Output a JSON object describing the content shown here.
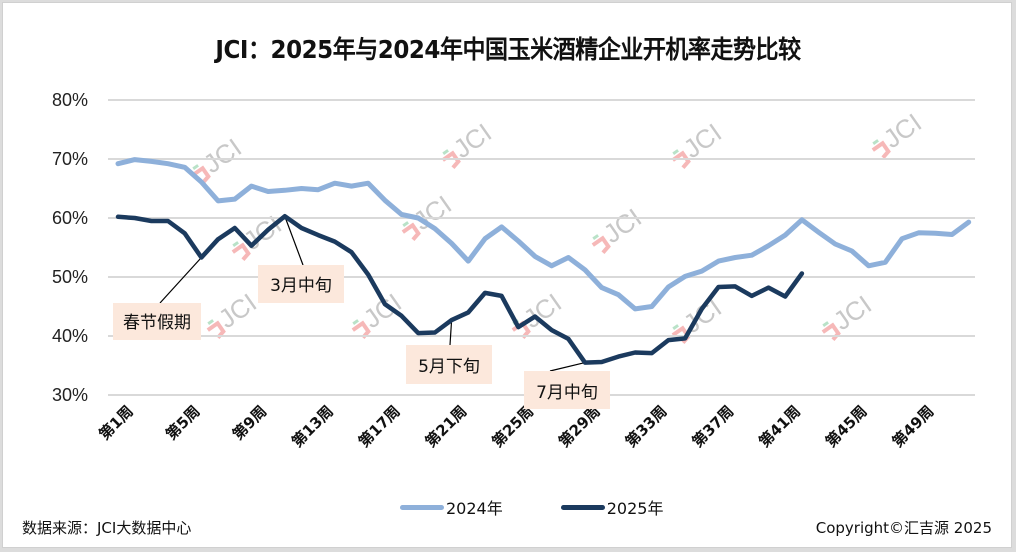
{
  "chart_data": {
    "type": "line",
    "title": "JCI：2025年与2024年中国玉米酒精企业开机率走势比较",
    "xlabel": "",
    "ylabel": "",
    "ylim": [
      30,
      80
    ],
    "yticks": [
      30,
      40,
      50,
      60,
      70,
      80
    ],
    "ytick_labels": [
      "30%",
      "40%",
      "50%",
      "60%",
      "70%",
      "80%"
    ],
    "y_unit": "%",
    "xtick_labels": [
      "第1周",
      "第5周",
      "第9周",
      "第13周",
      "第17周",
      "第21周",
      "第25周",
      "第29周",
      "第33周",
      "第37周",
      "第41周",
      "第45周",
      "第49周"
    ],
    "xtick_weeks": [
      1,
      5,
      9,
      13,
      17,
      21,
      25,
      29,
      33,
      37,
      41,
      45,
      49
    ],
    "x_range": [
      1,
      52
    ],
    "grid": true,
    "legend_position": "bottom",
    "series": [
      {
        "name": "2024年",
        "color": "#8eb0da",
        "values": [
          69.2,
          69.9,
          69.6,
          69.2,
          68.6,
          66.1,
          62.9,
          63.2,
          65.4,
          64.5,
          64.7,
          65.0,
          64.8,
          65.9,
          65.4,
          65.9,
          63.0,
          60.6,
          60.0,
          58.2,
          55.7,
          52.7,
          56.5,
          58.5,
          56.1,
          53.5,
          51.9,
          53.3,
          51.2,
          48.2,
          47.0,
          44.6,
          45.0,
          48.3,
          50.1,
          51.0,
          52.7,
          53.3,
          53.7,
          55.3,
          57.1,
          59.7,
          57.6,
          55.6,
          54.4,
          51.9,
          52.5,
          56.5,
          57.5,
          57.4,
          57.2,
          59.3
        ]
      },
      {
        "name": "2025年",
        "color": "#1b3a5e",
        "values": [
          60.2,
          60.0,
          59.5,
          59.5,
          57.4,
          53.3,
          56.4,
          58.3,
          55.3,
          58.0,
          60.3,
          58.3,
          57.1,
          56.0,
          54.2,
          50.4,
          45.4,
          43.4,
          40.5,
          40.6,
          42.7,
          44.0,
          47.3,
          46.8,
          41.5,
          43.3,
          41.0,
          39.5,
          35.5,
          35.6,
          36.5,
          37.2,
          37.1,
          39.3,
          39.6,
          44.6,
          48.3,
          48.4,
          46.8,
          48.2,
          46.7,
          50.6
        ]
      }
    ],
    "annotations": [
      {
        "text": "春节假期",
        "week": 6,
        "series": "2025年"
      },
      {
        "text": "3月中旬",
        "week": 11,
        "series": "2025年"
      },
      {
        "text": "5月下旬",
        "week": 21,
        "series": "2025年"
      },
      {
        "text": "7月中旬",
        "week": 29,
        "series": "2025年"
      }
    ],
    "watermark": "JCI"
  },
  "footer": {
    "source": "数据来源：JCI大数据中心",
    "copyright": "Copyright©汇吉源 2025"
  }
}
